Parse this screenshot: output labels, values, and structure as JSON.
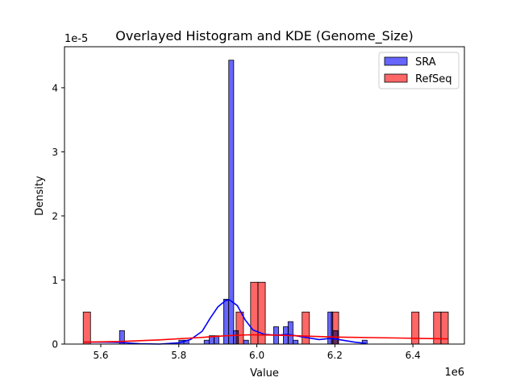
{
  "chart_data": {
    "type": "bar",
    "title": "Overlayed Histogram and KDE (Genome_Size)",
    "xlabel": "Value",
    "ylabel": "Density",
    "x_offset_label": "1e6",
    "y_offset_label": "1e-5",
    "xlim": [
      5.507,
      6.532
    ],
    "ylim": [
      0,
      4.64
    ],
    "x_ticks": [
      5.6,
      5.8,
      6.0,
      6.2,
      6.4
    ],
    "x_tick_labels": [
      "5.6",
      "5.8",
      "6.0",
      "6.2",
      "6.4"
    ],
    "y_ticks": [
      0,
      1,
      2,
      3,
      4
    ],
    "y_tick_labels": [
      "0",
      "1",
      "2",
      "3",
      "4"
    ],
    "grid": false,
    "legend_position": "top-right",
    "series": [
      {
        "name": "SRA",
        "color": "#6666ff",
        "kde_color": "#0000ff",
        "bin_width": 0.0127,
        "bins": [
          {
            "x": 5.648,
            "h": 0.21
          },
          {
            "x": 5.8,
            "h": 0.06
          },
          {
            "x": 5.813,
            "h": 0.06
          },
          {
            "x": 5.865,
            "h": 0.06
          },
          {
            "x": 5.878,
            "h": 0.13
          },
          {
            "x": 5.89,
            "h": 0.13
          },
          {
            "x": 5.915,
            "h": 0.7
          },
          {
            "x": 5.928,
            "h": 4.43
          },
          {
            "x": 5.94,
            "h": 0.21
          },
          {
            "x": 5.966,
            "h": 0.06
          },
          {
            "x": 6.043,
            "h": 0.27
          },
          {
            "x": 6.068,
            "h": 0.27
          },
          {
            "x": 6.08,
            "h": 0.35
          },
          {
            "x": 6.093,
            "h": 0.06
          },
          {
            "x": 6.182,
            "h": 0.5
          },
          {
            "x": 6.195,
            "h": 0.21
          },
          {
            "x": 6.27,
            "h": 0.06
          }
        ],
        "kde": [
          [
            5.555,
            0.03
          ],
          [
            5.6,
            0.03
          ],
          [
            5.65,
            0.025
          ],
          [
            5.7,
            0.005
          ],
          [
            5.75,
            0.0
          ],
          [
            5.8,
            0.02
          ],
          [
            5.83,
            0.07
          ],
          [
            5.86,
            0.2
          ],
          [
            5.88,
            0.4
          ],
          [
            5.9,
            0.58
          ],
          [
            5.92,
            0.68
          ],
          [
            5.93,
            0.69
          ],
          [
            5.95,
            0.6
          ],
          [
            5.97,
            0.38
          ],
          [
            5.99,
            0.22
          ],
          [
            6.02,
            0.15
          ],
          [
            6.05,
            0.14
          ],
          [
            6.08,
            0.15
          ],
          [
            6.12,
            0.11
          ],
          [
            6.16,
            0.07
          ],
          [
            6.19,
            0.09
          ],
          [
            6.22,
            0.06
          ],
          [
            6.25,
            0.03
          ],
          [
            6.28,
            0.01
          ]
        ]
      },
      {
        "name": "RefSeq",
        "color": "#ff6666",
        "kde_color": "#ff0000",
        "bin_width": 0.0187,
        "bins": [
          {
            "x": 5.555,
            "h": 0.5
          },
          {
            "x": 5.947,
            "h": 0.5
          },
          {
            "x": 5.984,
            "h": 0.965
          },
          {
            "x": 6.003,
            "h": 0.965
          },
          {
            "x": 6.116,
            "h": 0.5
          },
          {
            "x": 6.191,
            "h": 0.5
          },
          {
            "x": 6.397,
            "h": 0.5
          },
          {
            "x": 6.453,
            "h": 0.5
          },
          {
            "x": 6.472,
            "h": 0.5
          }
        ],
        "kde": [
          [
            5.555,
            0.03
          ],
          [
            5.65,
            0.04
          ],
          [
            5.75,
            0.065
          ],
          [
            5.85,
            0.1
          ],
          [
            5.92,
            0.13
          ],
          [
            5.98,
            0.145
          ],
          [
            6.05,
            0.14
          ],
          [
            6.1,
            0.13
          ],
          [
            6.2,
            0.11
          ],
          [
            6.3,
            0.1
          ],
          [
            6.4,
            0.09
          ],
          [
            6.49,
            0.08
          ]
        ]
      }
    ]
  }
}
